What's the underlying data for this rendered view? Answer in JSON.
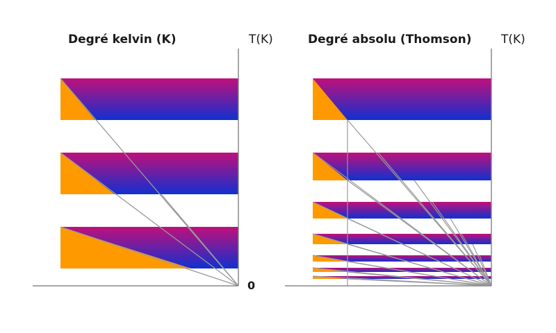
{
  "colors": {
    "band_top": "#c0107a",
    "band_bottom": "#1030d0",
    "wedge": "#ff9900",
    "axis": "#888888",
    "guide": "#999999"
  },
  "panels": {
    "left": {
      "title": "Degré kelvin (K)",
      "axis_label": "T(K)",
      "zero_label": "0"
    },
    "right": {
      "title": "Degré absolu (Thomson)",
      "axis_label": "T(K)"
    }
  }
}
